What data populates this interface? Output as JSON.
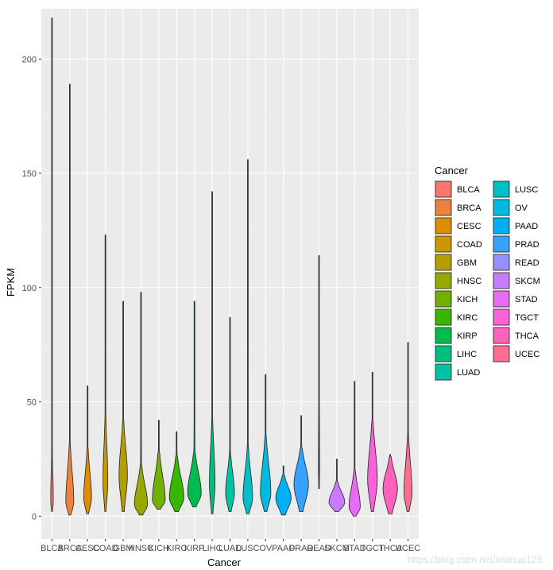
{
  "chart_data": {
    "type": "violin",
    "xlabel": "Cancer",
    "ylabel": "FPKM",
    "ylim": [
      -10,
      222
    ],
    "yticks": [
      0,
      50,
      100,
      150,
      200
    ],
    "grid": true,
    "legend_position": "right",
    "legend_title": "Cancer",
    "series": [
      {
        "name": "BLCA",
        "color": "#F8766D",
        "min": 2,
        "max": 218,
        "body_top": 35,
        "peak": 6,
        "peak_width": 0.16
      },
      {
        "name": "BRCA",
        "color": "#EC823C",
        "min": 0.5,
        "max": 189,
        "body_top": 32,
        "peak": 6,
        "peak_width": 0.5
      },
      {
        "name": "CESC",
        "color": "#DD8D00",
        "min": 1,
        "max": 57,
        "body_top": 30,
        "peak": 8,
        "peak_width": 0.48
      },
      {
        "name": "COAD",
        "color": "#C99800",
        "min": 2,
        "max": 123,
        "body_top": 46,
        "peak": 15,
        "peak_width": 0.3
      },
      {
        "name": "GBM",
        "color": "#B3A000",
        "min": 2,
        "max": 94,
        "body_top": 42,
        "peak": 18,
        "peak_width": 0.52
      },
      {
        "name": "HNSC",
        "color": "#97A900",
        "min": 0.5,
        "max": 98,
        "body_top": 22,
        "peak": 5,
        "peak_width": 0.82
      },
      {
        "name": "KICH",
        "color": "#72B000",
        "min": 3,
        "max": 42,
        "body_top": 28,
        "peak": 7,
        "peak_width": 0.8
      },
      {
        "name": "KIRC",
        "color": "#39B600",
        "min": 2,
        "max": 37,
        "body_top": 26,
        "peak": 8,
        "peak_width": 0.9
      },
      {
        "name": "KIRP",
        "color": "#00BB4E",
        "min": 4,
        "max": 94,
        "body_top": 28,
        "peak": 10,
        "peak_width": 0.85
      },
      {
        "name": "LIHC",
        "color": "#00BF7D",
        "min": 1,
        "max": 142,
        "body_top": 44,
        "peak": 14,
        "peak_width": 0.35
      },
      {
        "name": "LUAD",
        "color": "#00C1A3",
        "min": 2,
        "max": 87,
        "body_top": 28,
        "peak": 10,
        "peak_width": 0.55
      },
      {
        "name": "LUSC",
        "color": "#00BFC4",
        "min": 1,
        "max": 156,
        "body_top": 30,
        "peak": 8,
        "peak_width": 0.6
      },
      {
        "name": "OV",
        "color": "#00BAE0",
        "min": 2,
        "max": 62,
        "body_top": 35,
        "peak": 10,
        "peak_width": 0.65
      },
      {
        "name": "PAAD",
        "color": "#00B0F6",
        "min": 0.5,
        "max": 22,
        "body_top": 18,
        "peak": 8,
        "peak_width": 0.95
      },
      {
        "name": "PRAD",
        "color": "#35A2FF",
        "min": 2,
        "max": 44,
        "body_top": 30,
        "peak": 14,
        "peak_width": 0.9
      },
      {
        "name": "READ",
        "color": "#9590FF",
        "min": 12,
        "max": 114,
        "body_top": 65,
        "peak": 20,
        "peak_width": 0.1
      },
      {
        "name": "SKCM",
        "color": "#C77CFF",
        "min": 2,
        "max": 25,
        "body_top": 15,
        "peak": 6,
        "peak_width": 0.98
      },
      {
        "name": "STAD",
        "color": "#E76BF3",
        "min": 0,
        "max": 59,
        "body_top": 20,
        "peak": 4,
        "peak_width": 0.7
      },
      {
        "name": "TGCT",
        "color": "#FA62DB",
        "min": 2,
        "max": 63,
        "body_top": 42,
        "peak": 16,
        "peak_width": 0.6
      },
      {
        "name": "THCA",
        "color": "#FF62BC",
        "min": 1,
        "max": 27,
        "body_top": 26,
        "peak": 12,
        "peak_width": 0.9
      },
      {
        "name": "UCEC",
        "color": "#FF6C91",
        "min": 2,
        "max": 76,
        "body_top": 36,
        "peak": 10,
        "peak_width": 0.5
      }
    ]
  },
  "watermark": "https://blog.csdn.net/leianuo123"
}
